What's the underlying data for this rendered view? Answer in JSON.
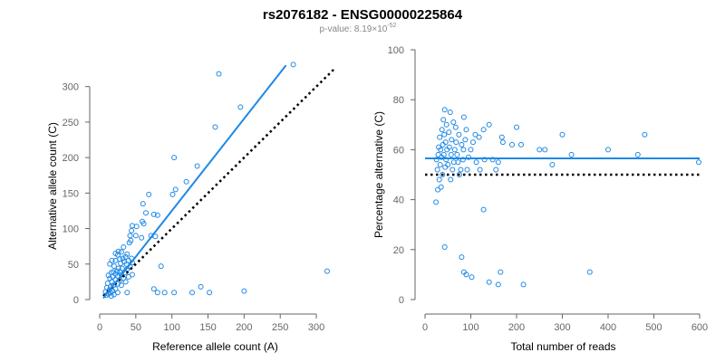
{
  "title": "rs2076182 - ENSG00000225864",
  "subtitle": {
    "prefix": "p-value: 8.19×10",
    "exponent": "-52"
  },
  "colors": {
    "points": "#1E88E5",
    "fit_line": "#1E88E5",
    "reference_line": "#000000",
    "axis": "#666666"
  },
  "chart_data": [
    {
      "type": "scatter",
      "xlabel": "Reference allele count (A)",
      "ylabel": "Alternative allele count (C)",
      "xlim": [
        0,
        320
      ],
      "ylim": [
        0,
        320
      ],
      "xticks": [
        0,
        50,
        100,
        150,
        200,
        250,
        300
      ],
      "yticks": [
        0,
        50,
        100,
        150,
        200,
        250,
        300
      ],
      "fit_line": {
        "style": "solid",
        "x": [
          5,
          258
        ],
        "y": [
          2,
          330
        ]
      },
      "reference_line": {
        "style": "dotted",
        "x": [
          5,
          325
        ],
        "y": [
          5,
          325
        ]
      },
      "points": [
        [
          268,
          331
        ],
        [
          165,
          318
        ],
        [
          195,
          271
        ],
        [
          160,
          243
        ],
        [
          103,
          200
        ],
        [
          135,
          188
        ],
        [
          120,
          166
        ],
        [
          105,
          155
        ],
        [
          101,
          148
        ],
        [
          68,
          148
        ],
        [
          60,
          135
        ],
        [
          64,
          122
        ],
        [
          75,
          120
        ],
        [
          80,
          119
        ],
        [
          59,
          110
        ],
        [
          61,
          107
        ],
        [
          45,
          104
        ],
        [
          51,
          103
        ],
        [
          44,
          97
        ],
        [
          42,
          90
        ],
        [
          50,
          90
        ],
        [
          71,
          90
        ],
        [
          77,
          89
        ],
        [
          58,
          87
        ],
        [
          43,
          83
        ],
        [
          41,
          80
        ],
        [
          33,
          74
        ],
        [
          26,
          68
        ],
        [
          30,
          67
        ],
        [
          38,
          64
        ],
        [
          22,
          65
        ],
        [
          25,
          63
        ],
        [
          36,
          60
        ],
        [
          44,
          58
        ],
        [
          32,
          58
        ],
        [
          28,
          57
        ],
        [
          40,
          55
        ],
        [
          22,
          55
        ],
        [
          17,
          55
        ],
        [
          34,
          53
        ],
        [
          45,
          52
        ],
        [
          29,
          51
        ],
        [
          37,
          50
        ],
        [
          14,
          50
        ],
        [
          20,
          47
        ],
        [
          42,
          46
        ],
        [
          85,
          47
        ],
        [
          26,
          44
        ],
        [
          31,
          44
        ],
        [
          38,
          43
        ],
        [
          24,
          40
        ],
        [
          19,
          39
        ],
        [
          28,
          39
        ],
        [
          35,
          38
        ],
        [
          16,
          38
        ],
        [
          22,
          36
        ],
        [
          45,
          35
        ],
        [
          30,
          35
        ],
        [
          12,
          34
        ],
        [
          25,
          33
        ],
        [
          18,
          32
        ],
        [
          40,
          32
        ],
        [
          14,
          30
        ],
        [
          33,
          30
        ],
        [
          22,
          28
        ],
        [
          28,
          27
        ],
        [
          17,
          25
        ],
        [
          36,
          25
        ],
        [
          11,
          23
        ],
        [
          25,
          22
        ],
        [
          19,
          20
        ],
        [
          30,
          20
        ],
        [
          15,
          18
        ],
        [
          10,
          17
        ],
        [
          22,
          15
        ],
        [
          13,
          13
        ],
        [
          18,
          12
        ],
        [
          8,
          11
        ],
        [
          15,
          10
        ],
        [
          25,
          10
        ],
        [
          12,
          8
        ],
        [
          20,
          7
        ],
        [
          9,
          6
        ],
        [
          16,
          5
        ],
        [
          38,
          10
        ],
        [
          75,
          15
        ],
        [
          80,
          10
        ],
        [
          90,
          10
        ],
        [
          103,
          10
        ],
        [
          128,
          10
        ],
        [
          140,
          18
        ],
        [
          152,
          10
        ],
        [
          200,
          12
        ],
        [
          315,
          40
        ]
      ]
    },
    {
      "type": "scatter",
      "xlabel": "Total number of reads",
      "ylabel": "Percentage alternative (C)",
      "xlim": [
        0,
        600
      ],
      "ylim": [
        0,
        100
      ],
      "xticks": [
        0,
        100,
        200,
        300,
        400,
        500,
        600
      ],
      "yticks": [
        0,
        20,
        40,
        60,
        80,
        100
      ],
      "fit_line": {
        "style": "solid",
        "x": [
          0,
          600
        ],
        "y": [
          56.5,
          56.5
        ]
      },
      "reference_line": {
        "style": "dotted",
        "x": [
          0,
          600
        ],
        "y": [
          50,
          50
        ]
      },
      "points": [
        [
          598,
          55
        ],
        [
          480,
          66
        ],
        [
          465,
          58
        ],
        [
          400,
          60
        ],
        [
          320,
          58
        ],
        [
          300,
          66
        ],
        [
          278,
          54
        ],
        [
          262,
          60
        ],
        [
          250,
          60
        ],
        [
          210,
          62
        ],
        [
          200,
          69
        ],
        [
          190,
          62
        ],
        [
          170,
          63
        ],
        [
          168,
          65
        ],
        [
          160,
          55
        ],
        [
          155,
          52
        ],
        [
          148,
          56
        ],
        [
          140,
          70
        ],
        [
          128,
          68
        ],
        [
          130,
          56
        ],
        [
          120,
          52
        ],
        [
          118,
          65
        ],
        [
          112,
          55
        ],
        [
          110,
          66
        ],
        [
          105,
          63
        ],
        [
          100,
          60
        ],
        [
          95,
          57
        ],
        [
          92,
          52
        ],
        [
          90,
          68
        ],
        [
          88,
          64
        ],
        [
          85,
          73
        ],
        [
          84,
          60
        ],
        [
          83,
          56
        ],
        [
          80,
          62
        ],
        [
          78,
          52
        ],
        [
          75,
          50
        ],
        [
          74,
          66
        ],
        [
          72,
          55
        ],
        [
          70,
          58
        ],
        [
          68,
          63
        ],
        [
          67,
          69
        ],
        [
          65,
          60
        ],
        [
          63,
          55
        ],
        [
          62,
          71
        ],
        [
          60,
          52
        ],
        [
          58,
          64
        ],
        [
          57,
          58
        ],
        [
          56,
          48
        ],
        [
          55,
          75
        ],
        [
          53,
          61
        ],
        [
          52,
          67
        ],
        [
          50,
          54
        ],
        [
          48,
          60
        ],
        [
          47,
          70
        ],
        [
          46,
          56
        ],
        [
          45,
          63
        ],
        [
          44,
          53
        ],
        [
          43,
          76
        ],
        [
          42,
          66
        ],
        [
          41,
          58
        ],
        [
          40,
          72
        ],
        [
          39,
          62
        ],
        [
          38,
          50
        ],
        [
          37,
          68
        ],
        [
          36,
          57
        ],
        [
          35,
          45
        ],
        [
          34,
          60
        ],
        [
          33,
          54
        ],
        [
          32,
          65
        ],
        [
          31,
          48
        ],
        [
          30,
          61
        ],
        [
          29,
          58
        ],
        [
          28,
          44
        ],
        [
          27,
          52
        ],
        [
          25,
          56
        ],
        [
          24,
          39
        ],
        [
          43,
          21
        ],
        [
          80,
          17
        ],
        [
          85,
          11
        ],
        [
          90,
          10
        ],
        [
          102,
          9
        ],
        [
          128,
          36
        ],
        [
          140,
          7
        ],
        [
          160,
          6
        ],
        [
          165,
          11
        ],
        [
          215,
          6
        ],
        [
          360,
          11
        ]
      ]
    }
  ]
}
